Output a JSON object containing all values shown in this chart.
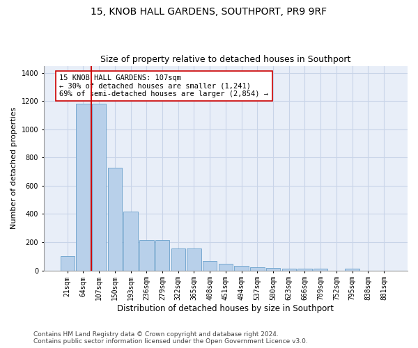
{
  "title": "15, KNOB HALL GARDENS, SOUTHPORT, PR9 9RF",
  "subtitle": "Size of property relative to detached houses in Southport",
  "xlabel": "Distribution of detached houses by size in Southport",
  "ylabel": "Number of detached properties",
  "categories": [
    "21sqm",
    "64sqm",
    "107sqm",
    "150sqm",
    "193sqm",
    "236sqm",
    "279sqm",
    "322sqm",
    "365sqm",
    "408sqm",
    "451sqm",
    "494sqm",
    "537sqm",
    "580sqm",
    "623sqm",
    "666sqm",
    "709sqm",
    "752sqm",
    "795sqm",
    "838sqm",
    "881sqm"
  ],
  "values": [
    100,
    1180,
    1180,
    730,
    415,
    215,
    215,
    155,
    155,
    65,
    48,
    30,
    22,
    17,
    13,
    13,
    13,
    0,
    13,
    0,
    0
  ],
  "bar_color": "#b8d0ea",
  "bar_edge_color": "#6aa0cc",
  "highlight_index": 2,
  "highlight_line_color": "#cc0000",
  "annotation_text": "15 KNOB HALL GARDENS: 107sqm\n← 30% of detached houses are smaller (1,241)\n69% of semi-detached houses are larger (2,854) →",
  "annotation_box_color": "#ffffff",
  "annotation_box_edge_color": "#cc0000",
  "ylim": [
    0,
    1450
  ],
  "yticks": [
    0,
    200,
    400,
    600,
    800,
    1000,
    1200,
    1400
  ],
  "footer": "Contains HM Land Registry data © Crown copyright and database right 2024.\nContains public sector information licensed under the Open Government Licence v3.0.",
  "background_color": "#ffffff",
  "plot_bg_color": "#e8eef8",
  "grid_color": "#c8d4e8",
  "title_fontsize": 10,
  "subtitle_fontsize": 9,
  "xlabel_fontsize": 8.5,
  "ylabel_fontsize": 8,
  "tick_fontsize": 7,
  "footer_fontsize": 6.5,
  "ann_fontsize": 7.5
}
